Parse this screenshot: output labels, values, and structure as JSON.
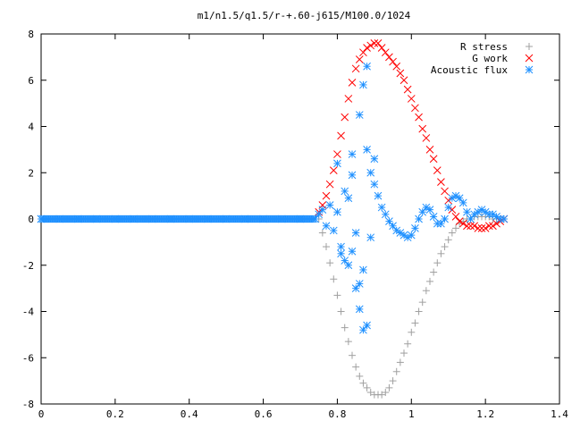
{
  "chart_data": {
    "type": "scatter",
    "title": "m1/n1.5/q1.5/r-+.60-j615/M100.0/1024",
    "xlabel": "",
    "ylabel": "",
    "xlim": [
      0,
      1.4
    ],
    "ylim": [
      -8,
      8
    ],
    "xticks": [
      "0",
      "0.2",
      "0.4",
      "0.6",
      "0.8",
      "1",
      "1.2",
      "1.4"
    ],
    "yticks": [
      "8",
      "6",
      "4",
      "2",
      "0",
      "-2",
      "-4",
      "-6",
      "-8"
    ],
    "grid": false,
    "legend_position": "top-right",
    "series": [
      {
        "name": "R stress",
        "marker": "+",
        "color": "#a0a0a0",
        "x": [
          0.75,
          0.76,
          0.77,
          0.78,
          0.79,
          0.8,
          0.81,
          0.82,
          0.83,
          0.84,
          0.85,
          0.86,
          0.87,
          0.88,
          0.89,
          0.9,
          0.91,
          0.92,
          0.93,
          0.94,
          0.95,
          0.96,
          0.97,
          0.98,
          0.99,
          1.0,
          1.01,
          1.02,
          1.03,
          1.04,
          1.05,
          1.06,
          1.07,
          1.08,
          1.09,
          1.1,
          1.11,
          1.12,
          1.13,
          1.14,
          1.15,
          1.16,
          1.17,
          1.18,
          1.19,
          1.2,
          1.21,
          1.22,
          1.23,
          1.24,
          1.25
        ],
        "y": [
          0.0,
          -0.6,
          -1.2,
          -1.9,
          -2.6,
          -3.3,
          -4.0,
          -4.7,
          -5.3,
          -5.9,
          -6.4,
          -6.8,
          -7.1,
          -7.3,
          -7.5,
          -7.6,
          -7.6,
          -7.6,
          -7.5,
          -7.3,
          -7.0,
          -6.6,
          -6.2,
          -5.8,
          -5.4,
          -4.9,
          -4.5,
          -4.0,
          -3.6,
          -3.1,
          -2.7,
          -2.3,
          -1.9,
          -1.5,
          -1.2,
          -0.9,
          -0.6,
          -0.4,
          -0.2,
          -0.1,
          0.0,
          0.0,
          0.1,
          0.1,
          0.1,
          0.1,
          0.1,
          0.0,
          0.0,
          0.0,
          0.0
        ]
      },
      {
        "name": "G work",
        "marker": "x",
        "color": "#ff0000",
        "x": [
          0.75,
          0.76,
          0.77,
          0.78,
          0.79,
          0.8,
          0.81,
          0.82,
          0.83,
          0.84,
          0.85,
          0.86,
          0.87,
          0.88,
          0.89,
          0.9,
          0.91,
          0.92,
          0.93,
          0.94,
          0.95,
          0.96,
          0.97,
          0.98,
          0.99,
          1.0,
          1.01,
          1.02,
          1.03,
          1.04,
          1.05,
          1.06,
          1.07,
          1.08,
          1.09,
          1.1,
          1.11,
          1.12,
          1.13,
          1.14,
          1.15,
          1.16,
          1.17,
          1.18,
          1.19,
          1.2,
          1.21,
          1.22,
          1.23,
          1.24,
          1.25
        ],
        "y": [
          0.3,
          0.6,
          1.0,
          1.5,
          2.1,
          2.8,
          3.6,
          4.4,
          5.2,
          5.9,
          6.5,
          6.9,
          7.2,
          7.4,
          7.5,
          7.6,
          7.6,
          7.4,
          7.2,
          7.0,
          6.8,
          6.6,
          6.3,
          6.0,
          5.6,
          5.2,
          4.8,
          4.4,
          3.9,
          3.5,
          3.0,
          2.6,
          2.1,
          1.6,
          1.2,
          0.8,
          0.4,
          0.1,
          -0.1,
          -0.2,
          -0.3,
          -0.3,
          -0.3,
          -0.4,
          -0.4,
          -0.4,
          -0.3,
          -0.3,
          -0.2,
          -0.1,
          0.0
        ]
      },
      {
        "name": "Acoustic flux",
        "marker": "*",
        "color": "#1e90ff",
        "x": [
          0.0,
          0.05,
          0.1,
          0.15,
          0.2,
          0.25,
          0.3,
          0.35,
          0.4,
          0.45,
          0.5,
          0.55,
          0.6,
          0.65,
          0.7,
          0.74,
          0.75,
          0.76,
          0.77,
          0.78,
          0.79,
          0.8,
          0.81,
          0.82,
          0.83,
          0.84,
          0.85,
          0.86,
          0.87,
          0.88,
          0.89,
          0.9,
          0.91,
          0.92,
          0.93,
          0.94,
          0.95,
          0.96,
          0.97,
          0.98,
          0.99,
          1.0,
          1.01,
          1.02,
          1.03,
          1.04,
          1.05,
          1.06,
          1.07,
          1.08,
          1.09,
          1.1,
          1.11,
          1.12,
          1.13,
          1.14,
          1.15,
          1.16,
          1.17,
          1.18,
          1.19,
          1.2,
          1.21,
          1.22,
          1.23,
          1.24,
          1.25,
          0.8,
          0.82,
          0.84,
          0.86,
          0.87,
          0.88,
          0.88,
          0.86,
          0.84,
          0.85,
          0.87,
          0.89,
          0.9,
          0.83,
          0.81
        ],
        "y": [
          0.0,
          0.0,
          0.0,
          0.0,
          0.0,
          0.0,
          0.0,
          0.0,
          0.0,
          0.0,
          0.0,
          0.0,
          0.0,
          0.0,
          0.0,
          0.0,
          0.2,
          0.4,
          -0.3,
          0.6,
          -0.5,
          0.3,
          -1.5,
          1.2,
          -2.0,
          2.8,
          -3.0,
          4.5,
          -4.8,
          3.0,
          -0.8,
          1.5,
          1.0,
          0.5,
          0.2,
          -0.1,
          -0.3,
          -0.5,
          -0.6,
          -0.7,
          -0.8,
          -0.7,
          -0.4,
          0.0,
          0.3,
          0.5,
          0.4,
          0.1,
          -0.2,
          -0.2,
          0.0,
          0.5,
          0.9,
          1.0,
          0.9,
          0.7,
          0.3,
          0.0,
          0.2,
          0.3,
          0.4,
          0.3,
          0.2,
          0.2,
          0.1,
          0.0,
          0.0,
          2.4,
          -1.8,
          1.9,
          -3.9,
          5.8,
          6.6,
          -4.6,
          -2.8,
          -1.4,
          -0.6,
          -2.2,
          2.0,
          2.6,
          0.9,
          -1.2
        ]
      }
    ]
  }
}
